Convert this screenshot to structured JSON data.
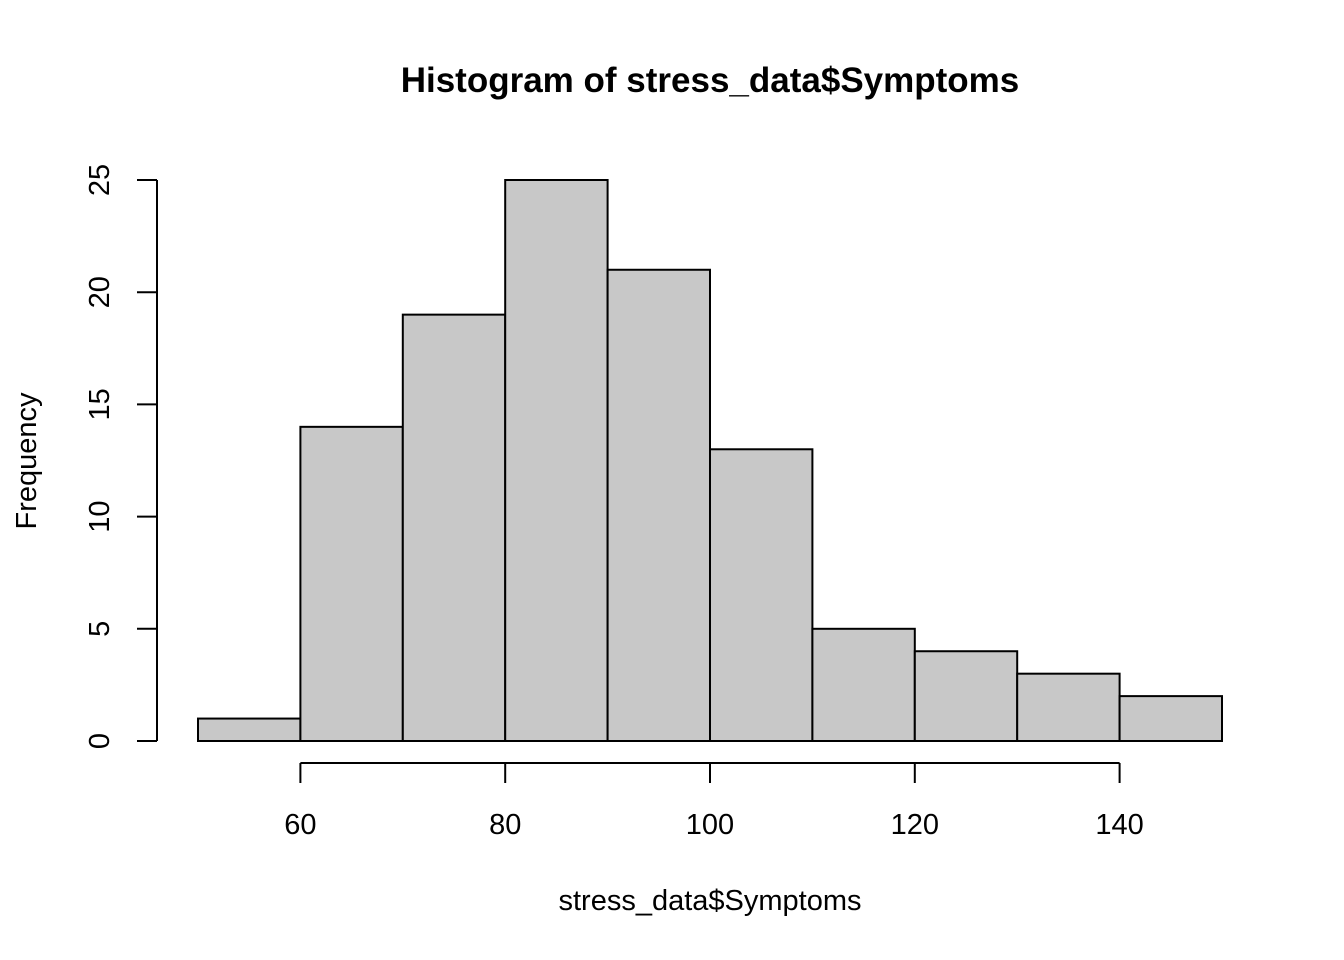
{
  "chart_data": {
    "type": "bar",
    "title": "Histogram of stress_data$Symptoms",
    "xlabel": "stress_data$Symptoms",
    "ylabel": "Frequency",
    "bins": [
      {
        "from": 50,
        "to": 60,
        "count": 1
      },
      {
        "from": 60,
        "to": 70,
        "count": 14
      },
      {
        "from": 70,
        "to": 80,
        "count": 19
      },
      {
        "from": 80,
        "to": 90,
        "count": 25
      },
      {
        "from": 90,
        "to": 100,
        "count": 21
      },
      {
        "from": 100,
        "to": 110,
        "count": 13
      },
      {
        "from": 110,
        "to": 120,
        "count": 5
      },
      {
        "from": 120,
        "to": 130,
        "count": 4
      },
      {
        "from": 130,
        "to": 140,
        "count": 3
      },
      {
        "from": 140,
        "to": 150,
        "count": 2
      }
    ],
    "x_ticks": [
      60,
      80,
      100,
      120,
      140
    ],
    "y_ticks": [
      0,
      5,
      10,
      15,
      20,
      25
    ],
    "xlim": [
      50,
      150
    ],
    "ylim": [
      0,
      25
    ],
    "grid": false,
    "bar_color": "#c8c8c8"
  }
}
